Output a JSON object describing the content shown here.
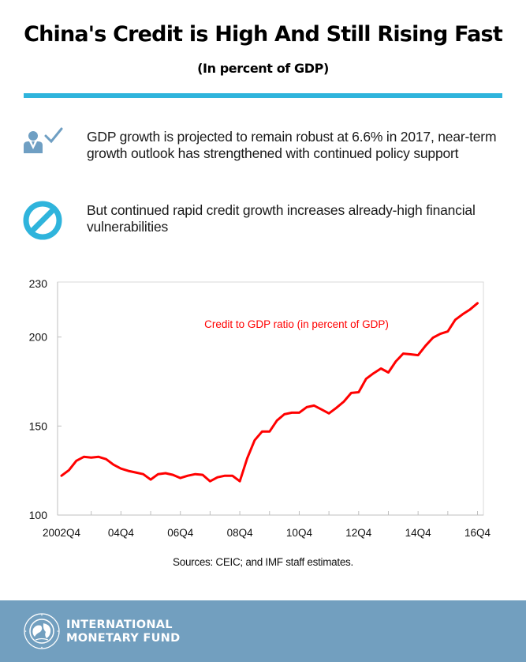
{
  "header": {
    "title": "China's Credit is High And Still Rising Fast",
    "subtitle": "(In percent of GDP)"
  },
  "colors": {
    "accent": "#2fb4dc",
    "icon_person": "#6f9fc3",
    "series_line": "#ff0000",
    "footer_bg": "#729fbf"
  },
  "bullets": [
    {
      "icon": "person-check-icon",
      "text": "GDP growth is projected to remain robust at 6.6% in 2017, near-term growth outlook has strengthened with continued policy support"
    },
    {
      "icon": "prohibited-icon",
      "text": "But continued rapid credit growth increases already-high financial vulnerabilities"
    }
  ],
  "chart_data": {
    "type": "line",
    "title": "",
    "xlabel": "",
    "ylabel": "",
    "ylim": [
      100,
      230
    ],
    "yticks": [
      100,
      150,
      200,
      230
    ],
    "xtick_labels": [
      "2002Q4",
      "04Q4",
      "06Q4",
      "08Q4",
      "10Q4",
      "12Q4",
      "14Q4",
      "16Q4"
    ],
    "xtick_quarter_index": [
      0,
      8,
      16,
      24,
      32,
      40,
      48,
      56
    ],
    "grid": false,
    "annotation": "Credit to GDP ratio (in percent of GDP)",
    "series": [
      {
        "name": "Credit to GDP ratio (in percent of GDP)",
        "start": "2002Q4",
        "frequency": "quarterly",
        "values": [
          122.1,
          125.2,
          130.5,
          132.7,
          132.3,
          132.7,
          131.4,
          128.3,
          126.1,
          124.8,
          123.9,
          123.0,
          119.9,
          123.0,
          123.5,
          122.6,
          120.8,
          122.1,
          123.0,
          122.6,
          119.0,
          121.2,
          122.1,
          122.1,
          119.0,
          131.9,
          142.0,
          146.9,
          146.9,
          153.1,
          156.6,
          157.5,
          157.5,
          160.6,
          161.5,
          159.3,
          157.1,
          160.2,
          163.7,
          168.6,
          169.0,
          176.5,
          179.6,
          182.3,
          180.1,
          186.3,
          190.7,
          190.3,
          189.8,
          195.1,
          199.6,
          201.8,
          203.1,
          209.7,
          212.8,
          215.5,
          219.0
        ]
      }
    ]
  },
  "sources": "Sources: CEIC; and IMF staff estimates.",
  "footer": {
    "org_line1": "INTERNATIONAL",
    "org_line2": "MONETARY FUND",
    "seal_text_top": "INTERNATIONAL",
    "seal_text_bottom": "MONETARY FUND"
  }
}
